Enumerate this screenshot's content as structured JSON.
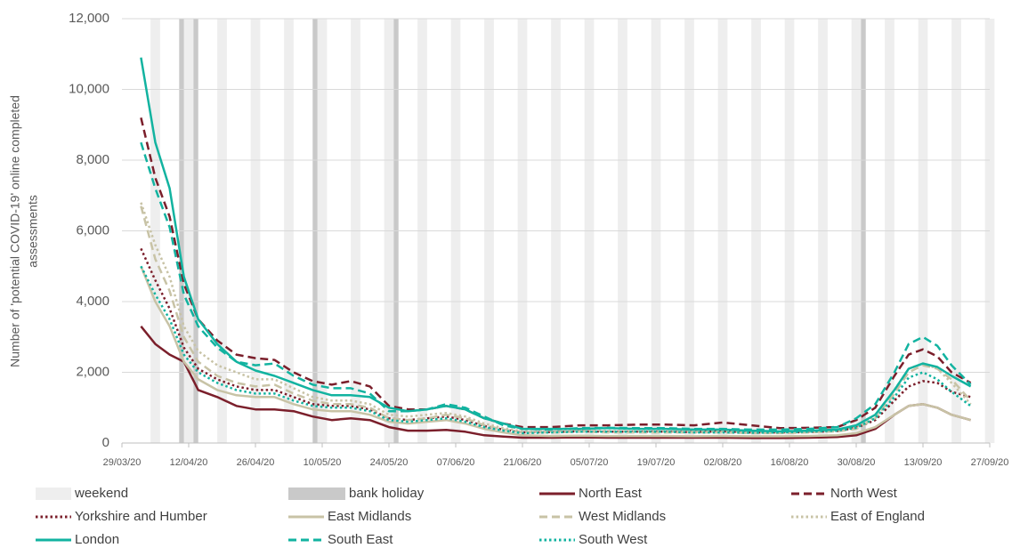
{
  "chart_data": {
    "type": "line",
    "ylabel_lines": [
      "Number of 'potential COVID-19' online completed",
      "assessments"
    ],
    "xlim": [
      "29/03/20",
      "27/09/20"
    ],
    "xticks": [
      "29/03/20",
      "12/04/20",
      "26/04/20",
      "10/05/20",
      "24/05/20",
      "07/06/20",
      "21/06/20",
      "05/07/20",
      "19/07/20",
      "02/08/20",
      "16/08/20",
      "30/08/20",
      "13/09/20",
      "27/09/20"
    ],
    "ylim": [
      0,
      12000
    ],
    "yticks": [
      0,
      {
        "value": 2000,
        "label": "2,000"
      },
      {
        "value": 4000,
        "label": "4,000"
      },
      {
        "value": 6000,
        "label": "6,000"
      },
      {
        "value": 8000,
        "label": "8,000"
      },
      {
        "value": 10000,
        "label": "10,000"
      },
      {
        "value": 12000,
        "label": "12,000"
      }
    ],
    "grid": true,
    "weekend_label": "weekend",
    "weekend_color": "#eeeeee",
    "weekends": [
      "04/04/20",
      "11/04/20",
      "18/04/20",
      "25/04/20",
      "02/05/20",
      "09/05/20",
      "16/05/20",
      "23/05/20",
      "30/05/20",
      "06/06/20",
      "13/06/20",
      "20/06/20",
      "27/06/20",
      "04/07/20",
      "11/07/20",
      "18/07/20",
      "25/07/20",
      "01/08/20",
      "08/08/20",
      "15/08/20",
      "22/08/20",
      "29/08/20",
      "05/09/20",
      "12/09/20",
      "19/09/20",
      "26/09/20"
    ],
    "bank_holiday_label": "bank holiday",
    "bank_holiday_color": "#c9c9c9",
    "bank_holidays": [
      "10/04/20",
      "13/04/20",
      "08/05/20",
      "25/05/20",
      "31/08/20"
    ],
    "x": [
      "02/04/20",
      "05/04/20",
      "08/04/20",
      "11/04/20",
      "14/04/20",
      "18/04/20",
      "22/04/20",
      "26/04/20",
      "30/04/20",
      "04/05/20",
      "08/05/20",
      "12/05/20",
      "16/05/20",
      "20/05/20",
      "24/05/20",
      "28/05/20",
      "01/06/20",
      "05/06/20",
      "09/06/20",
      "13/06/20",
      "17/06/20",
      "21/06/20",
      "27/06/20",
      "03/07/20",
      "09/07/20",
      "15/07/20",
      "21/07/20",
      "27/07/20",
      "02/08/20",
      "08/08/20",
      "14/08/20",
      "20/08/20",
      "26/08/20",
      "30/08/20",
      "03/09/20",
      "07/09/20",
      "10/09/20",
      "13/09/20",
      "16/09/20",
      "19/09/20",
      "23/09/20"
    ],
    "series": [
      {
        "name": "North East",
        "color": "#7b1f2b",
        "dash": "solid",
        "values": [
          3300,
          2800,
          2500,
          2300,
          1500,
          1300,
          1050,
          950,
          950,
          900,
          750,
          650,
          700,
          650,
          450,
          350,
          350,
          370,
          320,
          220,
          180,
          150,
          150,
          160,
          150,
          150,
          150,
          150,
          150,
          140,
          140,
          150,
          170,
          220,
          400,
          800,
          1050,
          1100,
          1000,
          800,
          650
        ]
      },
      {
        "name": "North West",
        "color": "#7b1f2b",
        "dash": "dashed",
        "values": [
          9200,
          7500,
          6400,
          4500,
          3500,
          2900,
          2500,
          2400,
          2350,
          2000,
          1750,
          1650,
          1750,
          1600,
          1050,
          950,
          950,
          1050,
          950,
          700,
          550,
          450,
          450,
          500,
          500,
          520,
          520,
          500,
          580,
          500,
          420,
          430,
          450,
          650,
          1000,
          1900,
          2500,
          2650,
          2450,
          2000,
          1700
        ]
      },
      {
        "name": "Yorkshire and Humber",
        "color": "#7b1f2b",
        "dash": "dotted",
        "values": [
          5500,
          4600,
          3800,
          2700,
          2100,
          1800,
          1600,
          1500,
          1500,
          1300,
          1100,
          1050,
          1050,
          950,
          700,
          650,
          700,
          750,
          650,
          480,
          380,
          300,
          310,
          330,
          320,
          320,
          320,
          310,
          330,
          300,
          300,
          310,
          340,
          430,
          650,
          1200,
          1600,
          1750,
          1700,
          1450,
          1300
        ]
      },
      {
        "name": "East Midlands",
        "color": "#c8c3a6",
        "dash": "solid",
        "values": [
          5000,
          4000,
          3300,
          2300,
          1800,
          1500,
          1350,
          1300,
          1300,
          1100,
          950,
          900,
          900,
          800,
          600,
          550,
          600,
          650,
          550,
          400,
          300,
          220,
          200,
          210,
          200,
          200,
          200,
          190,
          200,
          190,
          190,
          200,
          220,
          280,
          450,
          800,
          1050,
          1100,
          1000,
          800,
          650
        ]
      },
      {
        "name": "West Midlands",
        "color": "#c8c3a6",
        "dash": "dashed",
        "values": [
          6700,
          5200,
          4300,
          3000,
          2300,
          1900,
          1700,
          1600,
          1650,
          1400,
          1200,
          1100,
          1100,
          1000,
          700,
          650,
          700,
          800,
          700,
          500,
          380,
          300,
          300,
          320,
          300,
          300,
          300,
          300,
          300,
          280,
          280,
          300,
          330,
          400,
          700,
          1400,
          2000,
          2200,
          2100,
          1800,
          1200
        ]
      },
      {
        "name": "East of England",
        "color": "#c8c3a6",
        "dash": "dotted",
        "values": [
          6800,
          5600,
          4700,
          3300,
          2600,
          2200,
          2000,
          1800,
          1800,
          1550,
          1300,
          1200,
          1200,
          1100,
          800,
          750,
          800,
          850,
          750,
          550,
          420,
          330,
          330,
          350,
          340,
          330,
          330,
          320,
          330,
          300,
          300,
          320,
          360,
          450,
          750,
          1500,
          2100,
          2250,
          2100,
          1700,
          1100
        ]
      },
      {
        "name": "London",
        "color": "#12b3a0",
        "dash": "solid",
        "values": [
          10900,
          8500,
          7200,
          4700,
          3500,
          2800,
          2300,
          2050,
          1900,
          1700,
          1500,
          1350,
          1350,
          1300,
          1000,
          900,
          950,
          1050,
          950,
          700,
          550,
          400,
          400,
          400,
          420,
          400,
          400,
          380,
          380,
          350,
          330,
          350,
          380,
          500,
          800,
          1500,
          2100,
          2250,
          2150,
          1900,
          1600
        ]
      },
      {
        "name": "South East",
        "color": "#12b3a0",
        "dash": "dashed",
        "values": [
          8500,
          7200,
          6100,
          4200,
          3300,
          2700,
          2300,
          2200,
          2250,
          1900,
          1650,
          1550,
          1550,
          1400,
          900,
          900,
          950,
          1100,
          1000,
          750,
          500,
          400,
          380,
          420,
          430,
          420,
          420,
          400,
          400,
          380,
          380,
          400,
          450,
          700,
          1100,
          2000,
          2800,
          3000,
          2750,
          2200,
          1650
        ]
      },
      {
        "name": "South West",
        "color": "#12b3a0",
        "dash": "dotted",
        "values": [
          5000,
          4200,
          3500,
          2500,
          2000,
          1700,
          1500,
          1400,
          1400,
          1200,
          1050,
          1000,
          1000,
          900,
          650,
          600,
          650,
          700,
          600,
          450,
          350,
          280,
          300,
          320,
          320,
          320,
          320,
          300,
          300,
          290,
          300,
          320,
          350,
          430,
          700,
          1300,
          1850,
          2000,
          1800,
          1450,
          1050
        ]
      }
    ]
  }
}
